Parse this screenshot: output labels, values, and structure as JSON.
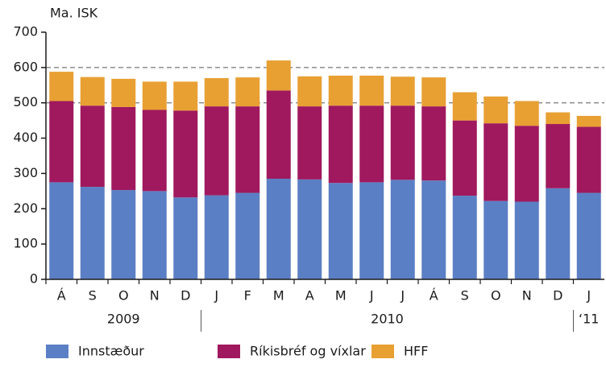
{
  "chart_data": {
    "type": "stacked_bar",
    "y_label": "Ma. ISK",
    "categories": [
      "Á",
      "S",
      "O",
      "N",
      "D",
      "J",
      "F",
      "M",
      "A",
      "M",
      "J",
      "J",
      "Á",
      "S",
      "O",
      "N",
      "D",
      "J"
    ],
    "category_years": [
      "2009",
      "2009",
      "2009",
      "2009",
      "2009",
      "2010",
      "2010",
      "2010",
      "2010",
      "2010",
      "2010",
      "2010",
      "2010",
      "2010",
      "2010",
      "2010",
      "2010",
      "‘11"
    ],
    "series": [
      {
        "name": "Innstæður",
        "color": "#5b7fc4",
        "values": [
          275,
          262,
          253,
          250,
          232,
          238,
          245,
          285,
          283,
          273,
          275,
          282,
          280,
          237,
          222,
          220,
          258,
          245
        ]
      },
      {
        "name": "Ríkisbréf og víxlar",
        "color": "#a0195e",
        "values": [
          230,
          230,
          235,
          230,
          246,
          252,
          245,
          250,
          207,
          219,
          217,
          210,
          210,
          213,
          220,
          215,
          182,
          187
        ]
      },
      {
        "name": "HFF",
        "color": "#e8a033",
        "values": [
          83,
          81,
          80,
          80,
          82,
          80,
          82,
          85,
          85,
          85,
          85,
          82,
          82,
          80,
          76,
          70,
          33,
          31
        ]
      }
    ],
    "ylim": [
      0,
      700
    ],
    "yticks": [
      0,
      100,
      200,
      300,
      400,
      500,
      600,
      700
    ],
    "reference_lines": [
      500,
      600
    ]
  }
}
